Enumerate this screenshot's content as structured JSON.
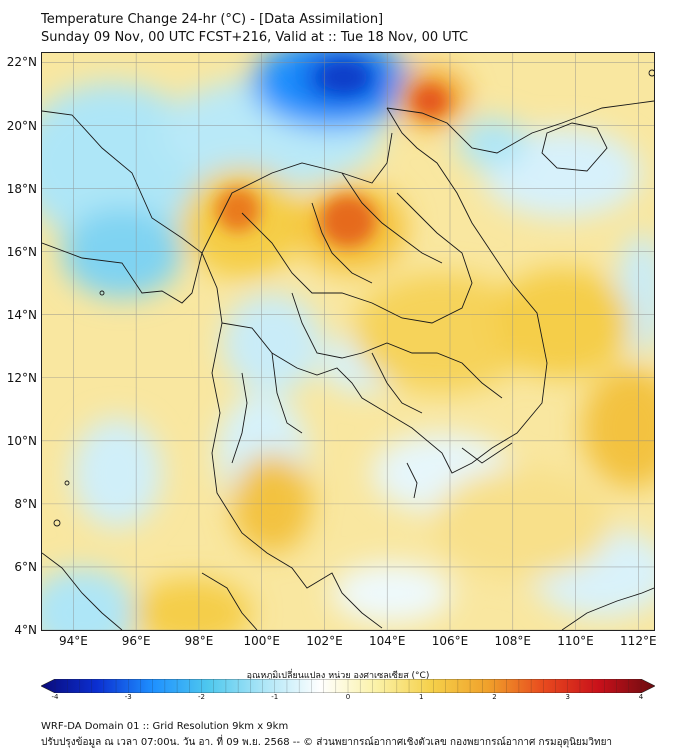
{
  "header": {
    "title": "Temperature Change 24-hr (°C) - [Data Assimilation]",
    "subtitle": "Sunday 09 Nov, 00 UTC FCST+216, Valid at :: Tue 18 Nov, 00 UTC"
  },
  "map": {
    "lat_labels": [
      "22°N",
      "20°N",
      "18°N",
      "16°N",
      "14°N",
      "12°N",
      "10°N",
      "8°N",
      "6°N",
      "4°N"
    ],
    "lat_values": [
      22,
      20,
      18,
      16,
      14,
      12,
      10,
      8,
      6,
      4
    ],
    "lon_labels": [
      "94°E",
      "96°E",
      "98°E",
      "100°E",
      "102°E",
      "104°E",
      "106°E",
      "108°E",
      "110°E",
      "112°E"
    ],
    "lon_values": [
      94,
      96,
      98,
      100,
      102,
      104,
      106,
      108,
      110,
      112
    ],
    "lat_range": [
      4,
      22.3
    ],
    "lon_range": [
      93,
      112.5
    ],
    "grid": true,
    "field_description": "24-hr temperature change shaded field over Southeast Asia"
  },
  "colorbar": {
    "title": "อุณหภูมิเปลี่ยนแปลง หน่วย องศาเซลเซียส (°C)",
    "ticks": [
      "-4",
      "-3",
      "-2",
      "-1",
      "0",
      "1",
      "2",
      "3",
      "4"
    ],
    "range": [
      -4,
      4
    ],
    "colors": [
      "#0a0a7a",
      "#0b2fd1",
      "#1e90ff",
      "#4fc8ee",
      "#aee6f7",
      "#ffffff",
      "#fbf2a8",
      "#f5d04a",
      "#f0a12b",
      "#e84a1e",
      "#c8101a",
      "#6b0c10"
    ]
  },
  "footer": {
    "line1": "WRF-DA Domain 01 :: Grid Resolution 9km x 9km",
    "line2": "ปรับปรุงข้อมูล ณ เวลา 07:00น. วัน อา. ที่ 09 พ.ย. 2568 -- © ส่วนพยากรณ์อากาศเชิงตัวเลข กองพยากรณ์อากาศ กรมอุตุนิยมวิทยา"
  }
}
